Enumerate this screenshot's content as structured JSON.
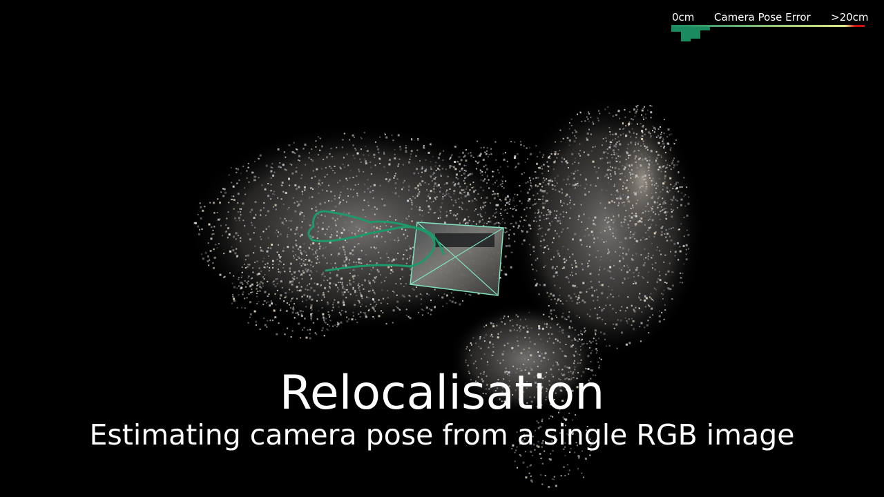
{
  "legend": {
    "min_label": "0cm",
    "title": "Camera Pose Error",
    "max_label": ">20cm",
    "gradient_colors": [
      "#1a8a5f",
      "#4ea56f",
      "#a7cf7a",
      "#e0e88a",
      "#cc1111"
    ],
    "histogram_color": "#1a8a5f"
  },
  "scene": {
    "background_color": "#000000",
    "trajectory_color": "#1e9a6a",
    "frustum_color": "#7fe3c0",
    "point_cloud_colors": [
      "#d8d4d0",
      "#b8b4b2",
      "#8d8a88",
      "#e9e3dc",
      "#6e7078",
      "#c9d2dc",
      "#e8d9bf"
    ]
  },
  "caption": {
    "title": "Relocalisation",
    "subtitle": "Estimating camera pose from a single RGB image"
  }
}
